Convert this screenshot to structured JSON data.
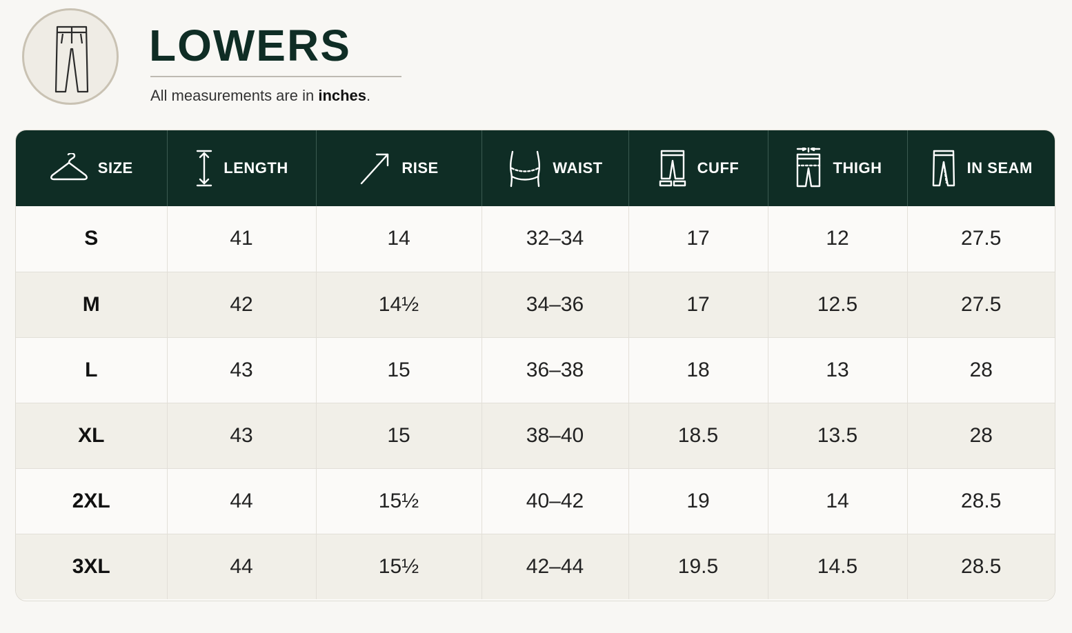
{
  "header": {
    "title": "LOWERS",
    "subtitle_prefix": "All measurements are in ",
    "subtitle_unit": "inches",
    "subtitle_suffix": "."
  },
  "table": {
    "columns": [
      {
        "label": "SIZE",
        "icon": "hanger-icon"
      },
      {
        "label": "LENGTH",
        "icon": "length-arrow-icon"
      },
      {
        "label": "RISE",
        "icon": "rise-arrow-icon"
      },
      {
        "label": "WAIST",
        "icon": "waist-icon"
      },
      {
        "label": "CUFF",
        "icon": "cuff-icon"
      },
      {
        "label": "THIGH",
        "icon": "thigh-icon"
      },
      {
        "label": "IN SEAM",
        "icon": "inseam-icon"
      }
    ],
    "rows": [
      [
        "S",
        "41",
        "14",
        "32–34",
        "17",
        "12",
        "27.5"
      ],
      [
        "M",
        "42",
        "14½",
        "34–36",
        "17",
        "12.5",
        "27.5"
      ],
      [
        "L",
        "43",
        "15",
        "36–38",
        "18",
        "13",
        "28"
      ],
      [
        "XL",
        "43",
        "15",
        "38–40",
        "18.5",
        "13.5",
        "28"
      ],
      [
        "2XL",
        "44",
        "15½",
        "40–42",
        "19",
        "14",
        "28.5"
      ],
      [
        "3XL",
        "44",
        "15½",
        "42–44",
        "19.5",
        "14.5",
        "28.5"
      ]
    ]
  },
  "colors": {
    "header_bg": "#0f2d25",
    "title": "#0f2d25",
    "row_alt": "#f1efe8",
    "background": "#f8f7f4"
  },
  "logo_icon": "trousers-icon"
}
